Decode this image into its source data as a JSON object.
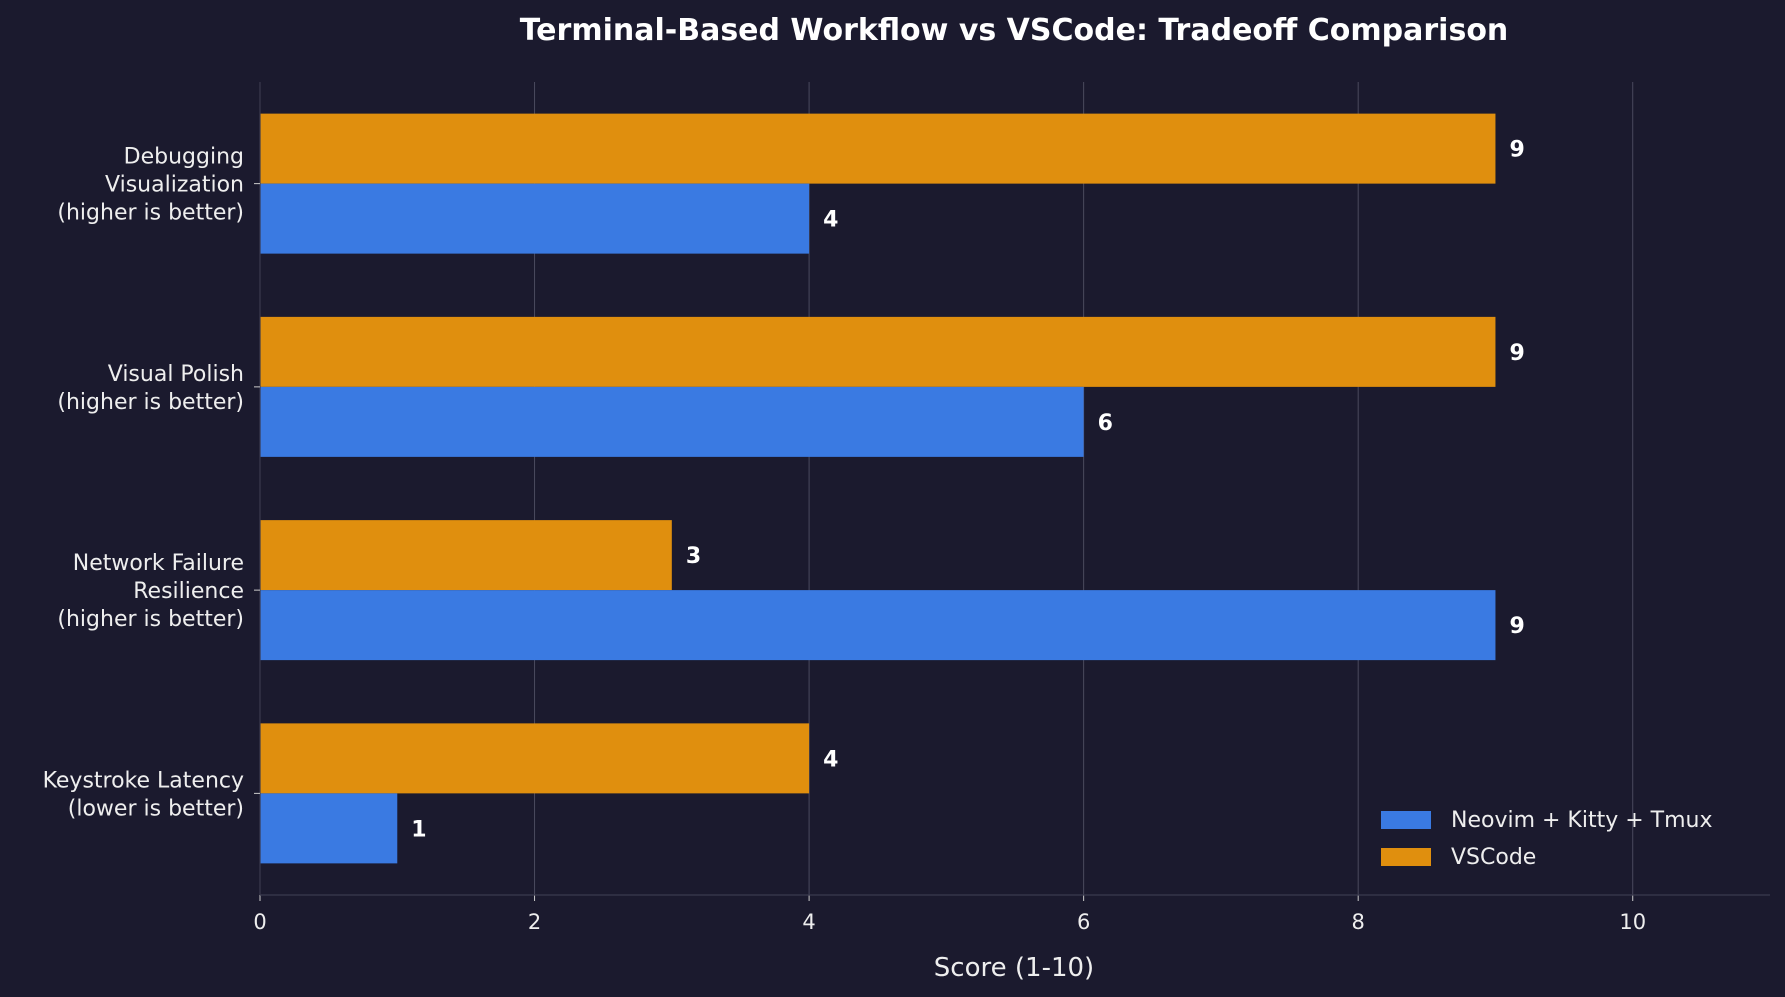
{
  "chart_data": {
    "type": "bar",
    "orientation": "horizontal",
    "title": "Terminal-Based Workflow vs VSCode: Tradeoff Comparison",
    "xlabel": "Score (1-10)",
    "ylabel": "",
    "xlim": [
      0,
      11
    ],
    "xticks": [
      0,
      2,
      4,
      6,
      8,
      10
    ],
    "grid": "vertical",
    "legend_position": "bottom-right",
    "categories": [
      [
        "Debugging",
        "Visualization",
        "(higher is better)"
      ],
      [
        "Visual Polish",
        "(higher is better)"
      ],
      [
        "Network Failure",
        "Resilience",
        "(higher is better)"
      ],
      [
        "Keystroke Latency",
        "(lower is better)"
      ]
    ],
    "series": [
      {
        "name": "Neovim + Kitty + Tmux",
        "color": "#3a7ae2",
        "values": [
          4,
          6,
          9,
          1
        ]
      },
      {
        "name": "VSCode",
        "color": "#e08f0e",
        "values": [
          9,
          9,
          3,
          4
        ]
      }
    ],
    "colors": {
      "background": "#1b1a2e",
      "grid": "#4a4a5e",
      "text": "#eeeeee"
    }
  }
}
